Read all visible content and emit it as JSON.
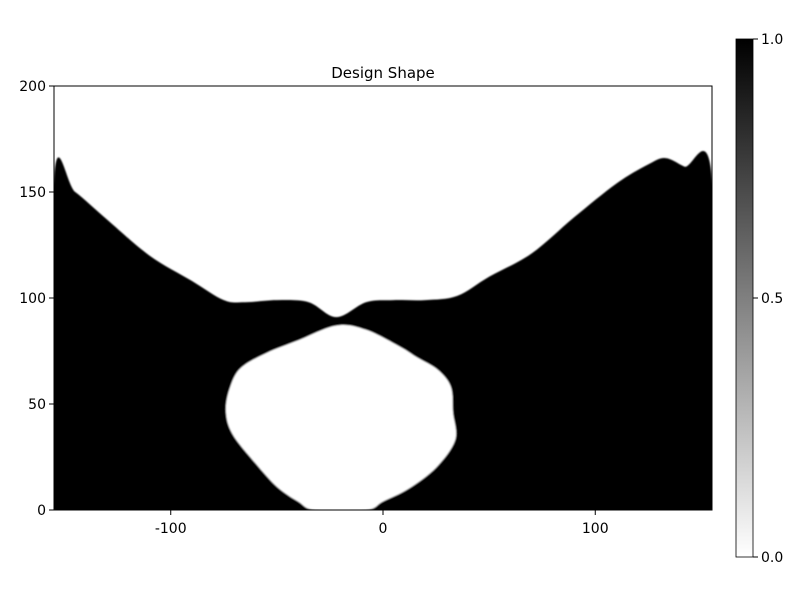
{
  "chart_data": {
    "type": "heatmap",
    "title": "Design Shape",
    "xlabel": "",
    "ylabel": "",
    "xlim": [
      -155,
      155
    ],
    "ylim": [
      0,
      200
    ],
    "xticks": [
      -100,
      0,
      100
    ],
    "xtick_labels": [
      "-100",
      "0",
      "100"
    ],
    "yticks": [
      0,
      50,
      100,
      150,
      200
    ],
    "ytick_labels": [
      "0",
      "50",
      "100",
      "150",
      "200"
    ],
    "colorbar": {
      "range": [
        0.0,
        1.0
      ],
      "ticks": [
        0.0,
        0.5,
        1.0
      ],
      "tick_labels": [
        "0.0",
        "0.5",
        "1.0"
      ],
      "colormap": "grays",
      "low_color": "#ffffff",
      "high_color": "#000000"
    },
    "grid": false,
    "solid_region_outline": [
      [
        -155,
        0
      ],
      [
        -155,
        156
      ],
      [
        -145,
        150
      ],
      [
        -130,
        137
      ],
      [
        -110,
        120
      ],
      [
        -90,
        108
      ],
      [
        -75,
        99
      ],
      [
        -65,
        98
      ],
      [
        -50,
        99
      ],
      [
        -35,
        98
      ],
      [
        -22,
        91
      ],
      [
        -8,
        98
      ],
      [
        5,
        99
      ],
      [
        20,
        99
      ],
      [
        35,
        101
      ],
      [
        50,
        110
      ],
      [
        70,
        121
      ],
      [
        90,
        138
      ],
      [
        110,
        154
      ],
      [
        125,
        163
      ],
      [
        133,
        166
      ],
      [
        142,
        162
      ],
      [
        155,
        156
      ],
      [
        155,
        0
      ]
    ],
    "void_regions": [
      {
        "outline": [
          [
            -22,
            87
          ],
          [
            -40,
            80
          ],
          [
            -55,
            74
          ],
          [
            -67,
            67
          ],
          [
            -72,
            58
          ],
          [
            -74,
            47
          ],
          [
            -71,
            36
          ],
          [
            -60,
            22
          ],
          [
            -50,
            11
          ],
          [
            -40,
            4
          ],
          [
            -32,
            0
          ],
          [
            -8,
            0
          ],
          [
            0,
            4
          ],
          [
            12,
            10
          ],
          [
            25,
            20
          ],
          [
            34,
            33
          ],
          [
            33,
            46
          ],
          [
            32,
            58
          ],
          [
            26,
            66
          ],
          [
            16,
            72
          ],
          [
            8,
            77
          ],
          [
            -8,
            85
          ]
        ]
      }
    ]
  }
}
